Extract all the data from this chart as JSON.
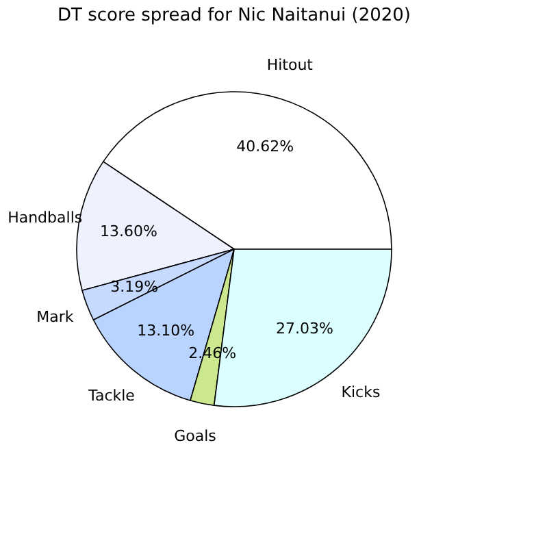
{
  "chart_data": {
    "type": "pie",
    "title": "DT score spread for Nic Naitanui (2020)",
    "categories": [
      "Hitout",
      "Handballs",
      "Mark",
      "Tackle",
      "Goals",
      "Kicks"
    ],
    "values": [
      40.62,
      13.6,
      3.19,
      13.1,
      2.46,
      27.03
    ],
    "colors": [
      "#ffffff",
      "#eef2ff",
      "#c6d9ff",
      "#b8d4ff",
      "#cce88e",
      "#dbffff"
    ],
    "value_labels": [
      "40.62%",
      "13.60%",
      "3.19%",
      "13.10%",
      "2.46%",
      "27.03%"
    ],
    "legend": false
  }
}
